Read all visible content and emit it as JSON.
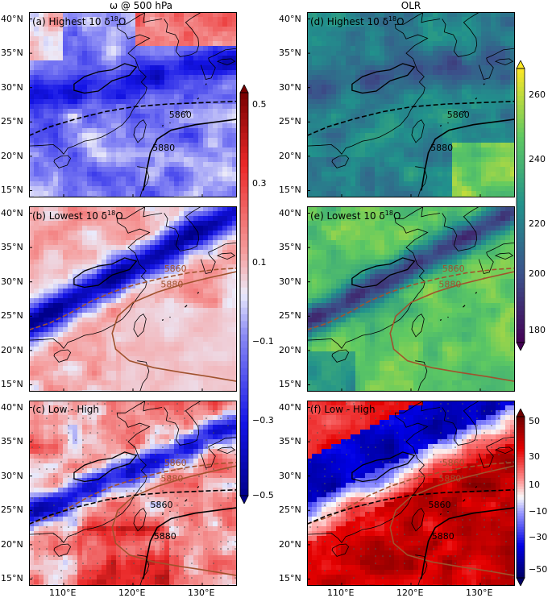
{
  "column_titles": {
    "left": "ω @ 500 hPa",
    "right": "OLR"
  },
  "panels": [
    {
      "id": "a",
      "label": "(a) Highest 10 δ",
      "label_sup": "18",
      "label_end": "O",
      "field": "omega",
      "style": "highest"
    },
    {
      "id": "b",
      "label": "(b) Lowest 10 δ",
      "label_sup": "18",
      "label_end": "O",
      "field": "omega",
      "style": "lowest"
    },
    {
      "id": "c",
      "label": "(c) Low - High",
      "label_sup": "",
      "label_end": "",
      "field": "omega",
      "style": "diff"
    },
    {
      "id": "d",
      "label": "(d) Highest 10 δ",
      "label_sup": "18",
      "label_end": "O",
      "field": "olr",
      "style": "highest"
    },
    {
      "id": "e",
      "label": "(e) Lowest 10 δ",
      "label_sup": "18",
      "label_end": "O",
      "field": "olr",
      "style": "lowest"
    },
    {
      "id": "f",
      "label": "(f) Low - High",
      "label_sup": "",
      "label_end": "",
      "field": "olr",
      "style": "diff"
    }
  ],
  "contour_labels": {
    "c5860": "5860",
    "c5880": "5880"
  },
  "line_colors": {
    "high": "#000000",
    "low": "#a0522d"
  },
  "colorbars": {
    "omega": {
      "ticks": [
        "0.5",
        "0.3",
        "0.1",
        "−0.1",
        "−0.3",
        "−0.5"
      ],
      "range": [
        -0.5,
        0.5
      ],
      "colormap": "bwr"
    },
    "olr": {
      "ticks": [
        "260",
        "240",
        "220",
        "200",
        "180"
      ],
      "range": [
        175,
        270
      ],
      "colormap": "viridis"
    },
    "olr_diff": {
      "ticks": [
        "50",
        "30",
        "10",
        "−10",
        "−30",
        "−50"
      ],
      "range": [
        -50,
        50
      ],
      "colormap": "seismic"
    }
  },
  "chart_data": [
    {
      "type": "heatmap",
      "panel": "a",
      "title": "(a) Highest 10 δ18O",
      "variable": "ω @ 500 hPa",
      "x_ticks": [
        "110°E",
        "120°E",
        "130°E"
      ],
      "y_ticks": [
        "40°N",
        "35°N",
        "30°N",
        "25°N",
        "20°N",
        "15°N"
      ],
      "xlim": [
        105,
        135
      ],
      "ylim": [
        14,
        41
      ],
      "contours": [
        "5860",
        "5880"
      ]
    },
    {
      "type": "heatmap",
      "panel": "b",
      "title": "(b) Lowest 10 δ18O",
      "variable": "ω @ 500 hPa",
      "x_ticks": [
        "110°E",
        "120°E",
        "130°E"
      ],
      "y_ticks": [
        "40°N",
        "35°N",
        "30°N",
        "25°N",
        "20°N",
        "15°N"
      ],
      "xlim": [
        105,
        135
      ],
      "ylim": [
        14,
        41
      ],
      "contours": [
        "5860",
        "5880"
      ]
    },
    {
      "type": "heatmap",
      "panel": "c",
      "title": "(c) Low - High",
      "variable": "ω @ 500 hPa",
      "x_ticks": [
        "110°E",
        "120°E",
        "130°E"
      ],
      "y_ticks": [
        "40°N",
        "35°N",
        "30°N",
        "25°N",
        "20°N",
        "15°N"
      ],
      "xlim": [
        105,
        135
      ],
      "ylim": [
        14,
        41
      ],
      "contours": [
        "5860",
        "5880",
        "5860",
        "5880"
      ]
    },
    {
      "type": "heatmap",
      "panel": "d",
      "title": "(d) Highest 10 δ18O",
      "variable": "OLR",
      "x_ticks": [
        "110°E",
        "120°E",
        "130°E"
      ],
      "y_ticks": [
        "40°N",
        "35°N",
        "30°N",
        "25°N",
        "20°N",
        "15°N"
      ],
      "xlim": [
        105,
        135
      ],
      "ylim": [
        14,
        41
      ],
      "contours": [
        "5860",
        "5880"
      ]
    },
    {
      "type": "heatmap",
      "panel": "e",
      "title": "(e) Lowest 10 δ18O",
      "variable": "OLR",
      "x_ticks": [
        "110°E",
        "120°E",
        "130°E"
      ],
      "y_ticks": [
        "40°N",
        "35°N",
        "30°N",
        "25°N",
        "20°N",
        "15°N"
      ],
      "xlim": [
        105,
        135
      ],
      "ylim": [
        14,
        41
      ],
      "contours": [
        "5860",
        "5880"
      ]
    },
    {
      "type": "heatmap",
      "panel": "f",
      "title": "(f) Low - High",
      "variable": "OLR",
      "x_ticks": [
        "110°E",
        "120°E",
        "130°E"
      ],
      "y_ticks": [
        "40°N",
        "35°N",
        "30°N",
        "25°N",
        "20°N",
        "15°N"
      ],
      "xlim": [
        105,
        135
      ],
      "ylim": [
        14,
        41
      ],
      "contours": [
        "5860",
        "5880",
        "5860",
        "5880"
      ]
    }
  ]
}
